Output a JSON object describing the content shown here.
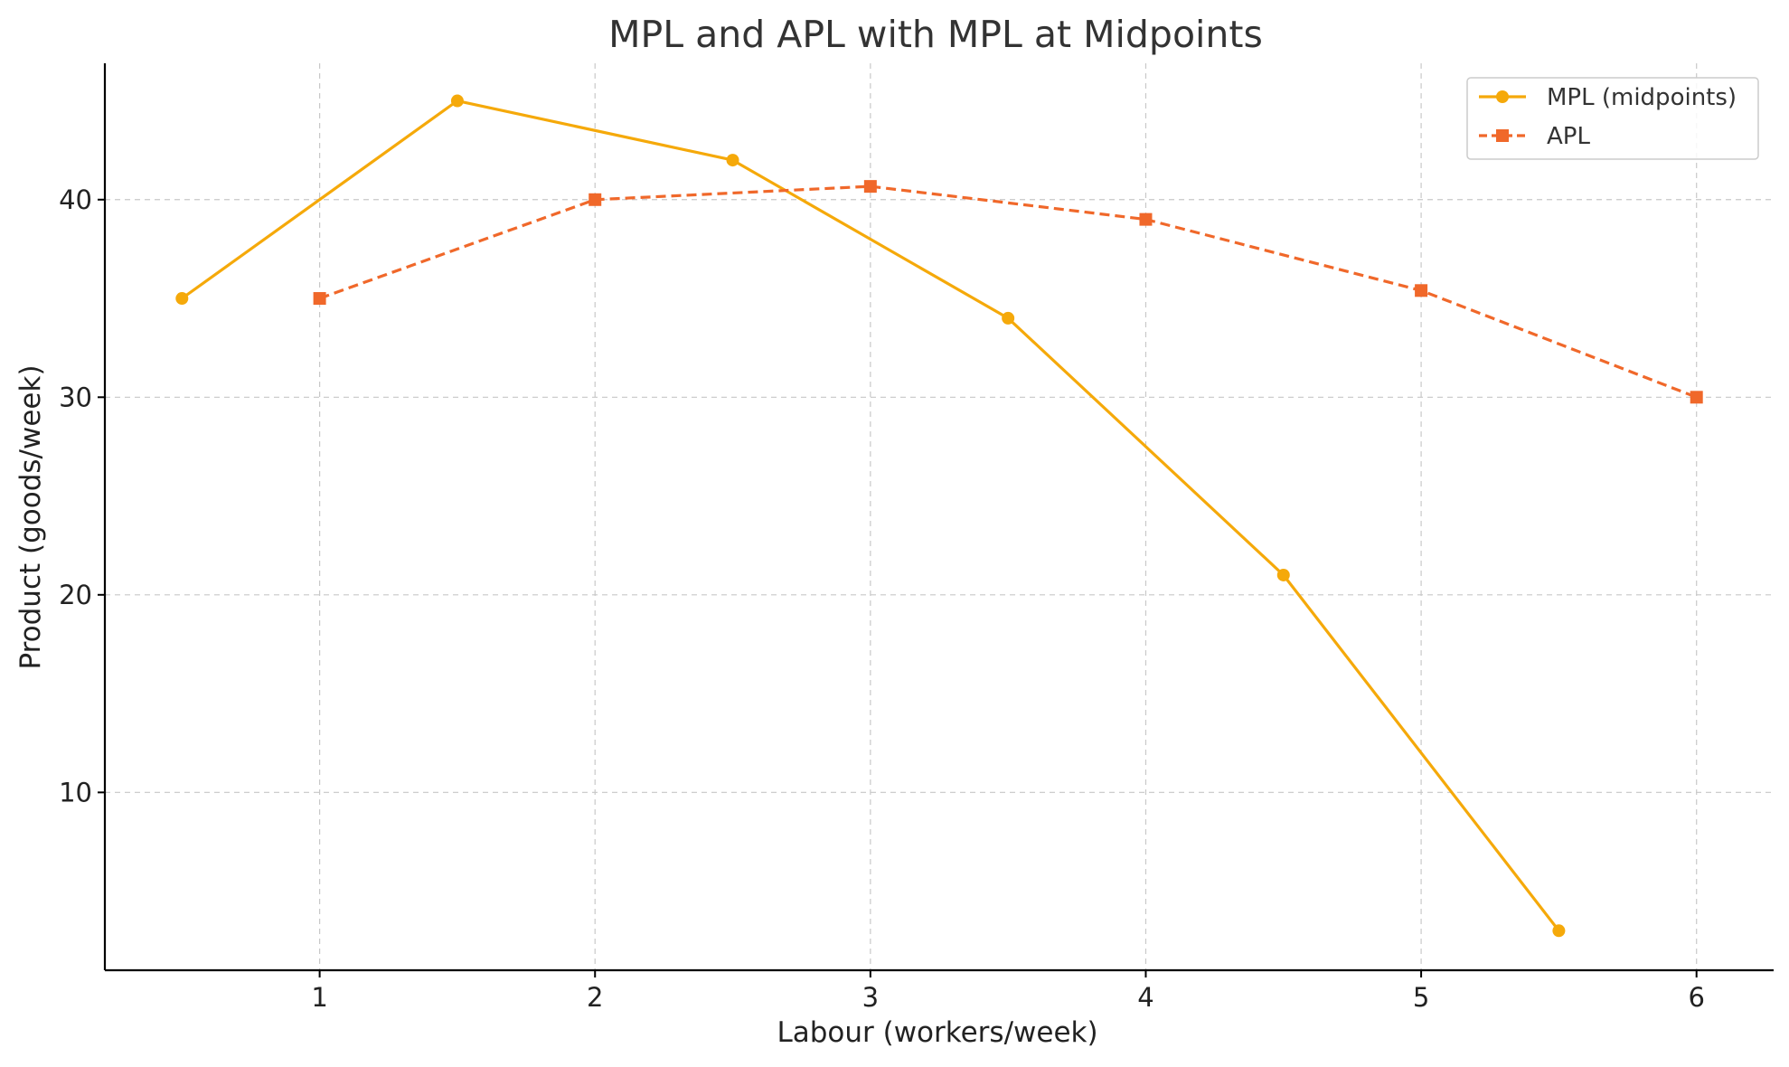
{
  "chart_data": {
    "type": "line",
    "title": "MPL and APL with MPL at Midpoints",
    "xlabel": "Labour (workers/week)",
    "ylabel": "Product (goods/week)",
    "xlim": [
      0.22,
      6.28
    ],
    "ylim": [
      1.0,
      46.9
    ],
    "xticks": [
      1,
      2,
      3,
      4,
      5,
      6
    ],
    "yticks": [
      10,
      20,
      30,
      40
    ],
    "grid": true,
    "legend_position": "top-right",
    "series": [
      {
        "name": "MPL (midpoints)",
        "color": "#f5a90a",
        "line_style": "solid",
        "marker": "circle",
        "x": [
          0.5,
          1.5,
          2.5,
          3.5,
          4.5,
          5.5
        ],
        "y": [
          35,
          45,
          42,
          34,
          21,
          3
        ]
      },
      {
        "name": "APL",
        "color": "#f0682a",
        "line_style": "dashed",
        "marker": "square",
        "x": [
          1,
          2,
          3,
          4,
          5,
          6
        ],
        "y": [
          35,
          40,
          40.67,
          39,
          35.4,
          30
        ]
      }
    ]
  }
}
